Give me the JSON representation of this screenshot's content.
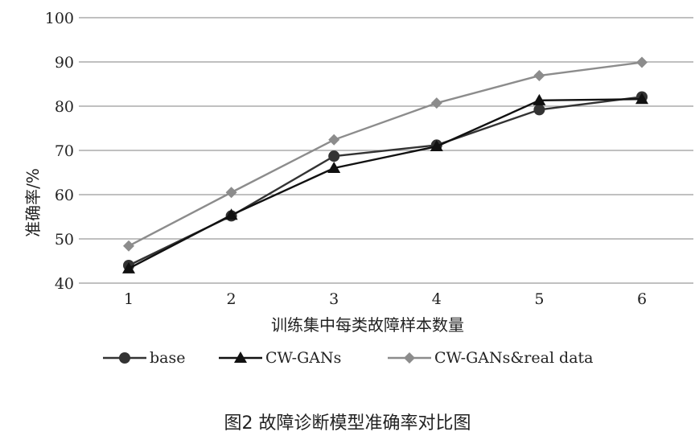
{
  "chart_data": {
    "type": "line",
    "x": [
      1,
      2,
      3,
      4,
      5,
      6
    ],
    "xlabel": "训练集中每类故障样本数量",
    "ylabel": "准确率/%",
    "ylim": [
      40,
      100
    ],
    "yticks": [
      40,
      50,
      60,
      70,
      80,
      90,
      100
    ],
    "grid": true,
    "legend_position": "bottom",
    "series": [
      {
        "name": "base",
        "color": "#333333",
        "marker": "circle",
        "values": [
          44.0,
          55.2,
          68.7,
          71.2,
          79.2,
          82.1
        ]
      },
      {
        "name": "CW-GANs",
        "color": "#111111",
        "marker": "triangle",
        "values": [
          43.3,
          55.4,
          66.0,
          70.9,
          81.3,
          81.6
        ]
      },
      {
        "name": "CW-GANs&real data",
        "color": "#8c8c8c",
        "marker": "diamond",
        "values": [
          48.4,
          60.5,
          72.4,
          80.7,
          86.9,
          89.9
        ]
      }
    ]
  },
  "caption": "图2  故障诊断模型准确率对比图"
}
